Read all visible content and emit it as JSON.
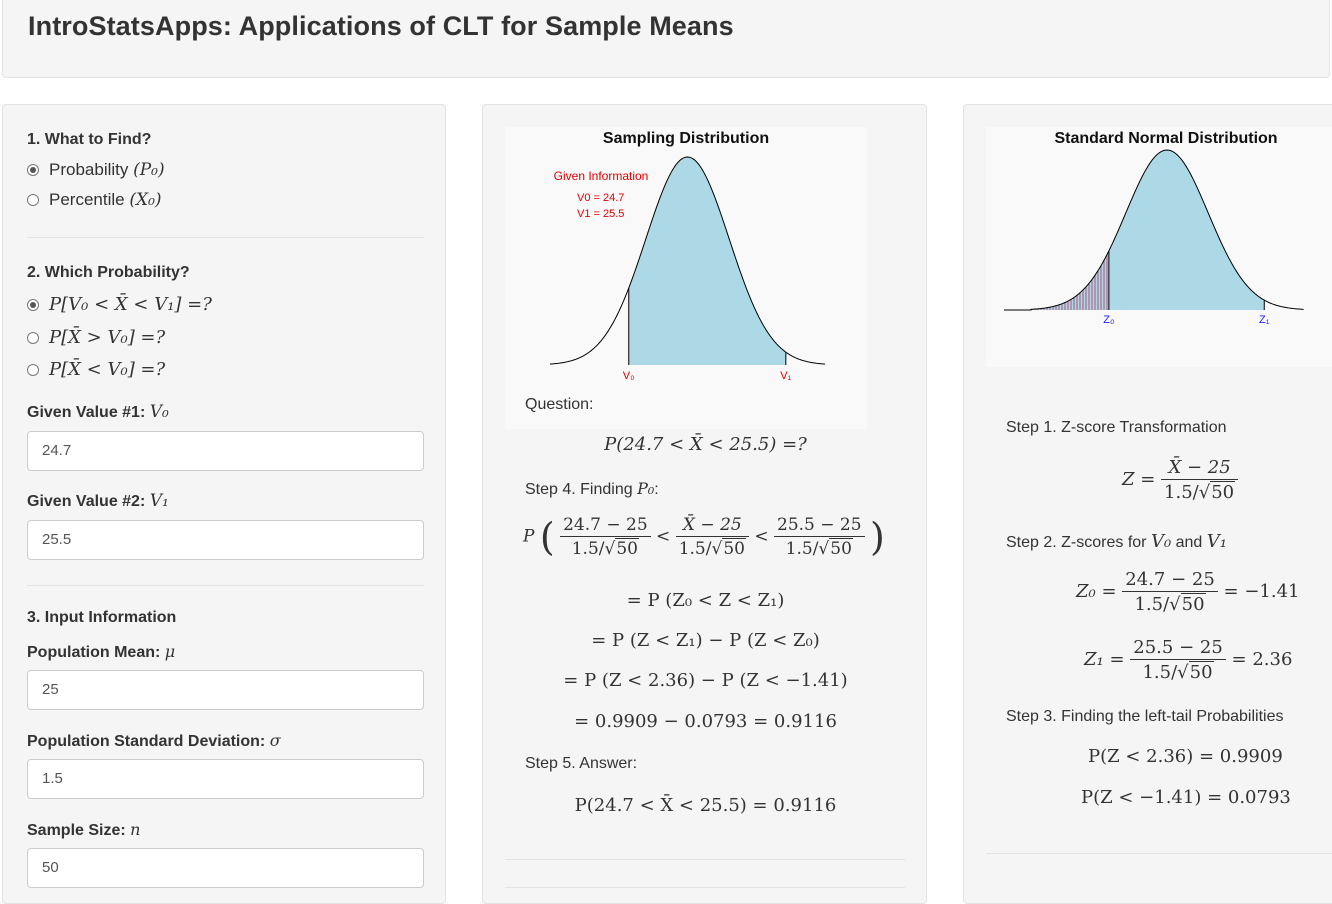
{
  "app": {
    "title": "IntroStatsApps: Applications of CLT for Sample Means"
  },
  "left": {
    "what_to_find": {
      "label": "1. What to Find?",
      "options": [
        {
          "text": "Probability",
          "math": "(P₀)",
          "selected": true
        },
        {
          "text": "Percentile",
          "math": "(X₀)",
          "selected": false
        }
      ]
    },
    "which_probability": {
      "label": "2. Which Probability?",
      "options": [
        {
          "math": "P[V₀ < X̄ < V₁] =?",
          "selected": true
        },
        {
          "math": "P[X̄ > V₀] =?",
          "selected": false
        },
        {
          "math": "P[X̄ < V₀] =?",
          "selected": false
        }
      ]
    },
    "given1": {
      "label": "Given Value #1:",
      "math": "V₀",
      "value": "24.7"
    },
    "given2": {
      "label": "Given Value #2:",
      "math": "V₁",
      "value": "25.5"
    },
    "input_info": {
      "label": "3. Input Information"
    },
    "mean": {
      "label": "Population Mean:",
      "math": "μ",
      "value": "25"
    },
    "sd": {
      "label": "Population Standard Deviation:",
      "math": "σ",
      "value": "1.5"
    },
    "n": {
      "label": "Sample Size:",
      "math": "n",
      "value": "50"
    }
  },
  "middle": {
    "plot": {
      "title": "Sampling Distribution",
      "given_info": "Given Information",
      "v0_text": "V0 =  24.7",
      "v1_text": "V1 =  25.5",
      "v0_label": "V₀",
      "v1_label": "V₁",
      "fill_color": "#add8e6",
      "label_color": "#e00000",
      "shade_from_z": -1.41,
      "shade_to_z": 2.36
    },
    "question_label": "Question:",
    "question_eq": "P(24.7 < X̄ < 25.5) =?",
    "step4_label": "Step 4. Finding",
    "step4_math": "P₀",
    "step4_colon": ":",
    "step4": {
      "P": "P",
      "f1_num": "24.7 − 25",
      "f1_den": "1.5/",
      "f1_sqrt": "50",
      "f2_num": "X̄ − 25",
      "f2_den": "1.5/",
      "f2_sqrt": "50",
      "f3_num": "25.5 − 25",
      "f3_den": "1.5/",
      "f3_sqrt": "50",
      "lt": "<",
      "line2": "= P (Z₀ < Z < Z₁)",
      "line3": "= P (Z < Z₁) − P (Z < Z₀)",
      "line4": "= P (Z < 2.36) − P (Z < −1.41)",
      "line5": "= 0.9909 − 0.0793 = 0.9116"
    },
    "step5_label": "Step 5. Answer:",
    "answer_eq": "P(24.7 < X̄ < 25.5) = 0.9116"
  },
  "right": {
    "plot": {
      "title": "Standard Normal Distribution",
      "z0_label": "Z₀",
      "z1_label": "Z₁",
      "fill_color": "#add8e6",
      "hatch_color": "#b03060",
      "label_color": "#2020ff",
      "z0": -1.41,
      "z1": 2.36
    },
    "step1_label": "Step 1. Z-score Transformation",
    "step1": {
      "lhs": "Z =",
      "num": "X̄ − 25",
      "den": "1.5/",
      "sqrt": "50"
    },
    "step2_label": "Step 2. Z-scores for",
    "step2_v0": "V₀",
    "step2_and": "and",
    "step2_v1": "V₁",
    "z0_eq": {
      "lhs": "Z₀ =",
      "num": "24.7 − 25",
      "den": "1.5/",
      "sqrt": "50",
      "rhs": "= −1.41"
    },
    "z1_eq": {
      "lhs": "Z₁ =",
      "num": "25.5 − 25",
      "den": "1.5/",
      "sqrt": "50",
      "rhs": "= 2.36"
    },
    "step3_label": "Step 3. Finding the left-tail Probabilities",
    "p1": "P(Z < 2.36) = 0.9909",
    "p2": "P(Z < −1.41) = 0.0793"
  }
}
